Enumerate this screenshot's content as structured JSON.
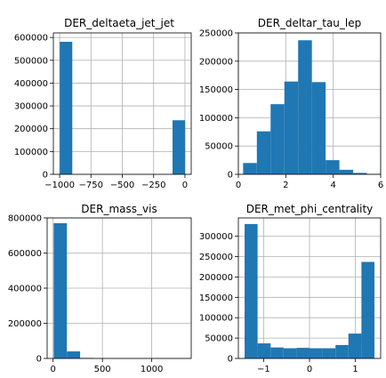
{
  "chart_data": [
    {
      "type": "bar",
      "title": "DER_deltaeta_jet_jet",
      "xlim": [
        -1050,
        50
      ],
      "ylim": [
        0,
        620000
      ],
      "xticks": [
        -1000,
        -750,
        -500,
        -250,
        0
      ],
      "xtick_labels": [
        "−1000",
        "−750",
        "−500",
        "−250",
        "0"
      ],
      "yticks": [
        0,
        100000,
        200000,
        300000,
        400000,
        500000,
        600000
      ],
      "ytick_labels": [
        "0",
        "100000",
        "200000",
        "300000",
        "400000",
        "500000",
        "600000"
      ],
      "bins": [
        {
          "x0": -999,
          "x1": -899,
          "value": 581000
        },
        {
          "x0": -899,
          "x1": -799,
          "value": 0
        },
        {
          "x0": -799,
          "x1": -699,
          "value": 0
        },
        {
          "x0": -699,
          "x1": -599,
          "value": 0
        },
        {
          "x0": -599,
          "x1": -499,
          "value": 0
        },
        {
          "x0": -499,
          "x1": -399,
          "value": 0
        },
        {
          "x0": -399,
          "x1": -299,
          "value": 0
        },
        {
          "x0": -299,
          "x1": -199,
          "value": 0
        },
        {
          "x0": -199,
          "x1": -99,
          "value": 0
        },
        {
          "x0": -99,
          "x1": 1,
          "value": 237000
        }
      ],
      "grid": true,
      "bar_color": "#1f77b4"
    },
    {
      "type": "bar",
      "title": "DER_deltar_tau_lep",
      "xlim": [
        0,
        6
      ],
      "ylim": [
        0,
        250000
      ],
      "xticks": [
        0,
        2,
        4,
        6
      ],
      "xtick_labels": [
        "0",
        "2",
        "4",
        "6"
      ],
      "yticks": [
        0,
        50000,
        100000,
        150000,
        200000,
        250000
      ],
      "ytick_labels": [
        "0",
        "50000",
        "100000",
        "150000",
        "200000",
        "250000"
      ],
      "bins": [
        {
          "x0": 0.2,
          "x1": 0.78,
          "value": 20000
        },
        {
          "x0": 0.78,
          "x1": 1.36,
          "value": 76000
        },
        {
          "x0": 1.36,
          "x1": 1.94,
          "value": 124000
        },
        {
          "x0": 1.94,
          "x1": 2.52,
          "value": 164000
        },
        {
          "x0": 2.52,
          "x1": 3.1,
          "value": 237000
        },
        {
          "x0": 3.1,
          "x1": 3.68,
          "value": 163000
        },
        {
          "x0": 3.68,
          "x1": 4.26,
          "value": 25000
        },
        {
          "x0": 4.26,
          "x1": 4.84,
          "value": 8000
        },
        {
          "x0": 4.84,
          "x1": 5.42,
          "value": 2500
        },
        {
          "x0": 5.42,
          "x1": 6.0,
          "value": 500
        }
      ],
      "grid": true,
      "bar_color": "#1f77b4"
    },
    {
      "type": "bar",
      "title": "DER_mass_vis",
      "xlim": [
        -60,
        1400
      ],
      "ylim": [
        0,
        800000
      ],
      "xticks": [
        0,
        500,
        1000
      ],
      "xtick_labels": [
        "0",
        "500",
        "1000"
      ],
      "yticks": [
        0,
        200000,
        400000,
        600000,
        800000
      ],
      "ytick_labels": [
        "0",
        "200000",
        "400000",
        "600000",
        "800000"
      ],
      "bins": [
        {
          "x0": 6,
          "x1": 140,
          "value": 770000
        },
        {
          "x0": 140,
          "x1": 274,
          "value": 40000
        },
        {
          "x0": 274,
          "x1": 408,
          "value": 3000
        },
        {
          "x0": 408,
          "x1": 542,
          "value": 300
        },
        {
          "x0": 542,
          "x1": 676,
          "value": 0
        },
        {
          "x0": 676,
          "x1": 810,
          "value": 0
        },
        {
          "x0": 810,
          "x1": 944,
          "value": 0
        },
        {
          "x0": 944,
          "x1": 1078,
          "value": 0
        },
        {
          "x0": 1078,
          "x1": 1212,
          "value": 0
        },
        {
          "x0": 1212,
          "x1": 1346,
          "value": 0
        }
      ],
      "grid": true,
      "bar_color": "#1f77b4"
    },
    {
      "type": "bar",
      "title": "DER_met_phi_centrality",
      "xlim": [
        -1.55,
        1.55
      ],
      "ylim": [
        0,
        345000
      ],
      "xticks": [
        -1,
        0,
        1
      ],
      "xtick_labels": [
        "−1",
        "0",
        "1"
      ],
      "yticks": [
        0,
        50000,
        100000,
        150000,
        200000,
        250000,
        300000
      ],
      "ytick_labels": [
        "0",
        "50000",
        "100000",
        "150000",
        "200000",
        "250000",
        "300000"
      ],
      "bins": [
        {
          "x0": -1.414,
          "x1": -1.131,
          "value": 330000
        },
        {
          "x0": -1.131,
          "x1": -0.848,
          "value": 37000
        },
        {
          "x0": -0.848,
          "x1": -0.566,
          "value": 27000
        },
        {
          "x0": -0.566,
          "x1": -0.283,
          "value": 25000
        },
        {
          "x0": -0.283,
          "x1": 0.0,
          "value": 26000
        },
        {
          "x0": 0.0,
          "x1": 0.283,
          "value": 25000
        },
        {
          "x0": 0.283,
          "x1": 0.566,
          "value": 25000
        },
        {
          "x0": 0.566,
          "x1": 0.848,
          "value": 33000
        },
        {
          "x0": 0.848,
          "x1": 1.131,
          "value": 61000
        },
        {
          "x0": 1.131,
          "x1": 1.414,
          "value": 237000
        }
      ],
      "grid": true,
      "bar_color": "#1f77b4"
    }
  ]
}
